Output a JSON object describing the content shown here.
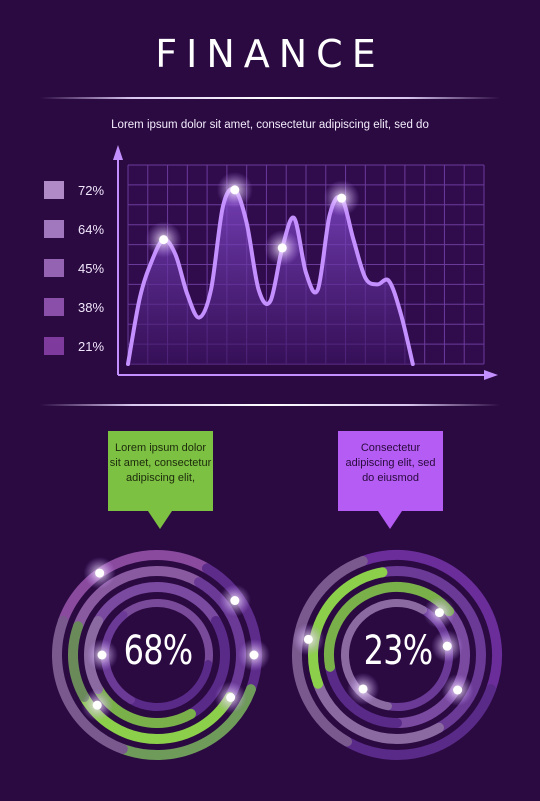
{
  "header": {
    "title": "FINANCE",
    "subtitle": "Lorem ipsum dolor sit amet, consectetur adipiscing elit, sed do"
  },
  "legend": [
    {
      "label": "72%",
      "color": "#b08ac6"
    },
    {
      "label": "64%",
      "color": "#a177bd"
    },
    {
      "label": "45%",
      "color": "#9463b2"
    },
    {
      "label": "38%",
      "color": "#8a4fa8"
    },
    {
      "label": "21%",
      "color": "#7f3a9e"
    }
  ],
  "callouts": [
    {
      "text": "Lorem ipsum dolor sit amet, consectetur adipiscing elit,",
      "color": "#7dc142"
    },
    {
      "text": "Consectetur adipiscing elit, sed do eiusmod",
      "color": "#b45cf4"
    }
  ],
  "colors": {
    "background": "#2b0a42",
    "line": "#c490ff",
    "grid": "#6a3a9a",
    "green": "#8ccf4a",
    "ring_purple": "#6a2d9a"
  },
  "chart_data": [
    {
      "type": "area",
      "title": "",
      "xlabel": "",
      "ylabel": "",
      "grid": true,
      "x": [
        0,
        0.5,
        1,
        1.5,
        2,
        2.5,
        3,
        3.5,
        4,
        4.5,
        5,
        5.5,
        6,
        6.5,
        7,
        7.5,
        8,
        8.5,
        9,
        9.5,
        10,
        10.5,
        11,
        11.5,
        12,
        12.5,
        13,
        13.5,
        14,
        14.5,
        15
      ],
      "y": [
        0,
        40,
        62,
        75,
        66,
        42,
        28,
        45,
        95,
        105,
        85,
        45,
        38,
        70,
        88,
        55,
        45,
        90,
        100,
        75,
        52,
        48,
        50,
        30,
        0,
        0,
        0,
        0,
        0,
        0,
        0
      ],
      "ylim": [
        0,
        120
      ],
      "highlights": [
        3,
        9,
        13,
        18
      ]
    },
    {
      "type": "pie",
      "label": "68%",
      "value": 68
    },
    {
      "type": "pie",
      "label": "23%",
      "value": 23
    }
  ]
}
